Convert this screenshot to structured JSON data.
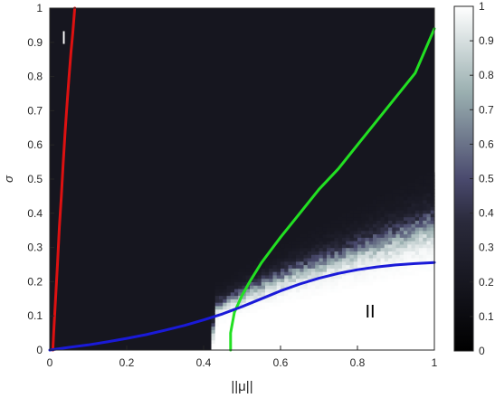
{
  "chart_data": {
    "type": "heatmap",
    "xlabel": "||μ||",
    "ylabel": "σ",
    "xlim": [
      0,
      1
    ],
    "ylim": [
      0,
      1
    ],
    "x_ticks": [
      "0",
      "0.2",
      "0.4",
      "0.6",
      "0.8",
      "1"
    ],
    "y_ticks": [
      "0",
      "0.1",
      "0.2",
      "0.3",
      "0.4",
      "0.5",
      "0.6",
      "0.7",
      "0.8",
      "0.9",
      "1"
    ],
    "colorbar": {
      "range": [
        0,
        1
      ],
      "ticks": [
        "0",
        "0.1",
        "0.2",
        "0.3",
        "0.4",
        "0.5",
        "0.6",
        "0.7",
        "0.8",
        "0.9",
        "1"
      ],
      "colormap": "bone"
    },
    "background_value": 0.2,
    "heatmap_boundary": {
      "description": "dark region above, bright region below",
      "points": [
        [
          0.42,
          0.0
        ],
        [
          0.43,
          0.13
        ],
        [
          0.5,
          0.17
        ],
        [
          0.6,
          0.22
        ],
        [
          0.7,
          0.26
        ],
        [
          0.8,
          0.3
        ],
        [
          0.9,
          0.34
        ],
        [
          1.0,
          0.38
        ]
      ]
    },
    "annotations": [
      {
        "text": "I",
        "x": 0.03,
        "y": 0.895,
        "color": "#ffffff"
      },
      {
        "text": "II",
        "x": 0.82,
        "y": 0.095,
        "color": "#000000"
      }
    ],
    "series": [
      {
        "color": "#dd1111",
        "x": [
          0.008,
          0.01,
          0.015,
          0.02,
          0.025,
          0.03,
          0.035,
          0.04,
          0.045,
          0.05,
          0.055,
          0.06,
          0.065
        ],
        "y": [
          0.0,
          0.05,
          0.15,
          0.25,
          0.36,
          0.45,
          0.55,
          0.64,
          0.72,
          0.8,
          0.87,
          0.93,
          1.0
        ]
      },
      {
        "color": "#22e022",
        "x": [
          0.47,
          0.47,
          0.48,
          0.5,
          0.52,
          0.55,
          0.58,
          0.6,
          0.65,
          0.7,
          0.75,
          0.8,
          0.85,
          0.9,
          0.95,
          1.0
        ],
        "y": [
          0.0,
          0.05,
          0.11,
          0.16,
          0.2,
          0.255,
          0.3,
          0.33,
          0.4,
          0.47,
          0.53,
          0.6,
          0.67,
          0.74,
          0.81,
          0.94
        ]
      },
      {
        "color": "#1a1ad8",
        "x": [
          0.0,
          0.05,
          0.1,
          0.15,
          0.2,
          0.25,
          0.3,
          0.35,
          0.4,
          0.45,
          0.5,
          0.55,
          0.6,
          0.65,
          0.7,
          0.75,
          0.8,
          0.85,
          0.9,
          0.95,
          1.0
        ],
        "y": [
          0.0,
          0.008,
          0.015,
          0.024,
          0.034,
          0.045,
          0.058,
          0.072,
          0.088,
          0.106,
          0.127,
          0.15,
          0.173,
          0.193,
          0.21,
          0.224,
          0.235,
          0.243,
          0.249,
          0.253,
          0.256
        ]
      }
    ]
  }
}
